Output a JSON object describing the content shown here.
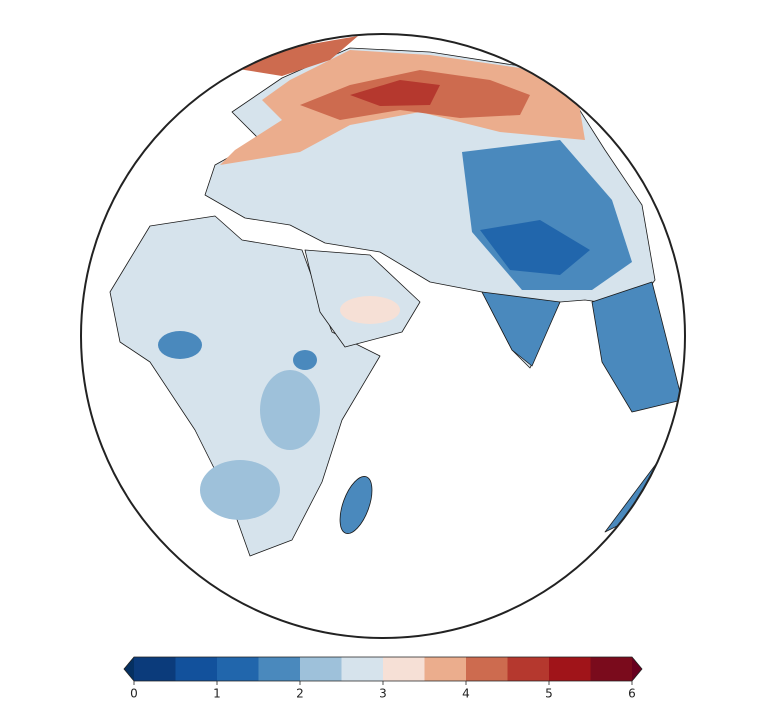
{
  "colorbar": {
    "ticks": [
      0,
      1,
      2,
      3,
      4,
      5,
      6
    ],
    "levels": [
      0,
      0.5,
      1,
      1.5,
      2,
      2.5,
      3,
      3.5,
      4,
      4.5,
      5,
      5.5,
      6
    ],
    "colors": [
      "#0b3b7b",
      "#12519c",
      "#2166ac",
      "#4a89bd",
      "#9ec1da",
      "#d6e3ec",
      "#f6e0d6",
      "#ebad8d",
      "#cd6b4f",
      "#b5382e",
      "#a01419",
      "#7a0b1c"
    ],
    "extend": "both",
    "under_color": "#053061",
    "over_color": "#67001f"
  }
}
